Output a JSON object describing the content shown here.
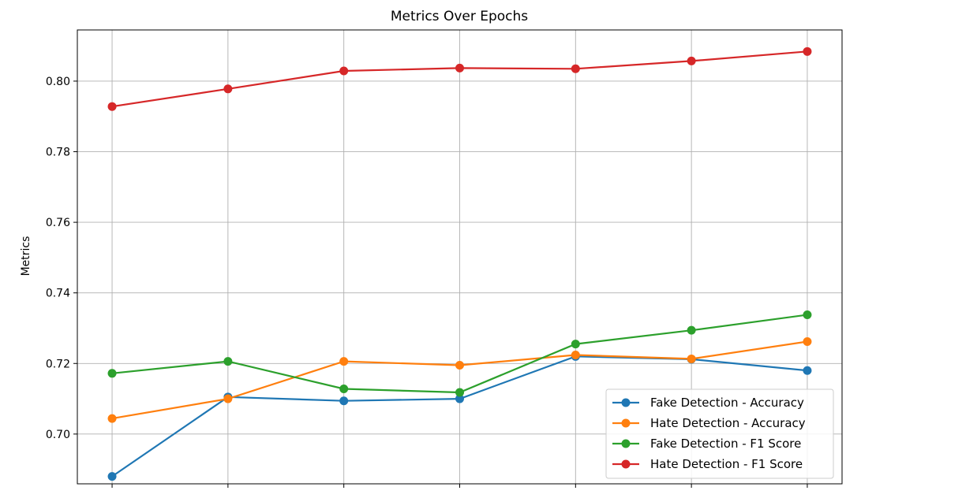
{
  "chart_data": {
    "type": "line",
    "title": "Metrics Over Epochs",
    "xlabel": "",
    "ylabel": "Metrics",
    "x": [
      1,
      2,
      3,
      4,
      5,
      6,
      7
    ],
    "xlim": [
      0.7,
      7.3
    ],
    "ylim": [
      0.6859,
      0.8145
    ],
    "yticks": [
      "0.70",
      "0.72",
      "0.74",
      "0.76",
      "0.78",
      "0.80"
    ],
    "grid": true,
    "legend_position": "lower right",
    "series": [
      {
        "name": "Fake Detection - Accuracy",
        "color": "#1f77b4",
        "values": [
          0.688,
          0.7105,
          0.7094,
          0.71,
          0.722,
          0.7212,
          0.718
        ]
      },
      {
        "name": "Hate Detection - Accuracy",
        "color": "#ff7f0e",
        "values": [
          0.7044,
          0.71,
          0.7206,
          0.7195,
          0.7224,
          0.7213,
          0.7262
        ]
      },
      {
        "name": "Fake Detection - F1 Score",
        "color": "#2ca02c",
        "values": [
          0.7172,
          0.7206,
          0.7128,
          0.7118,
          0.7255,
          0.7294,
          0.7338
        ]
      },
      {
        "name": "Hate Detection - F1 Score",
        "color": "#d62728",
        "values": [
          0.7928,
          0.7978,
          0.8029,
          0.8037,
          0.8035,
          0.8057,
          0.8084
        ]
      }
    ]
  }
}
